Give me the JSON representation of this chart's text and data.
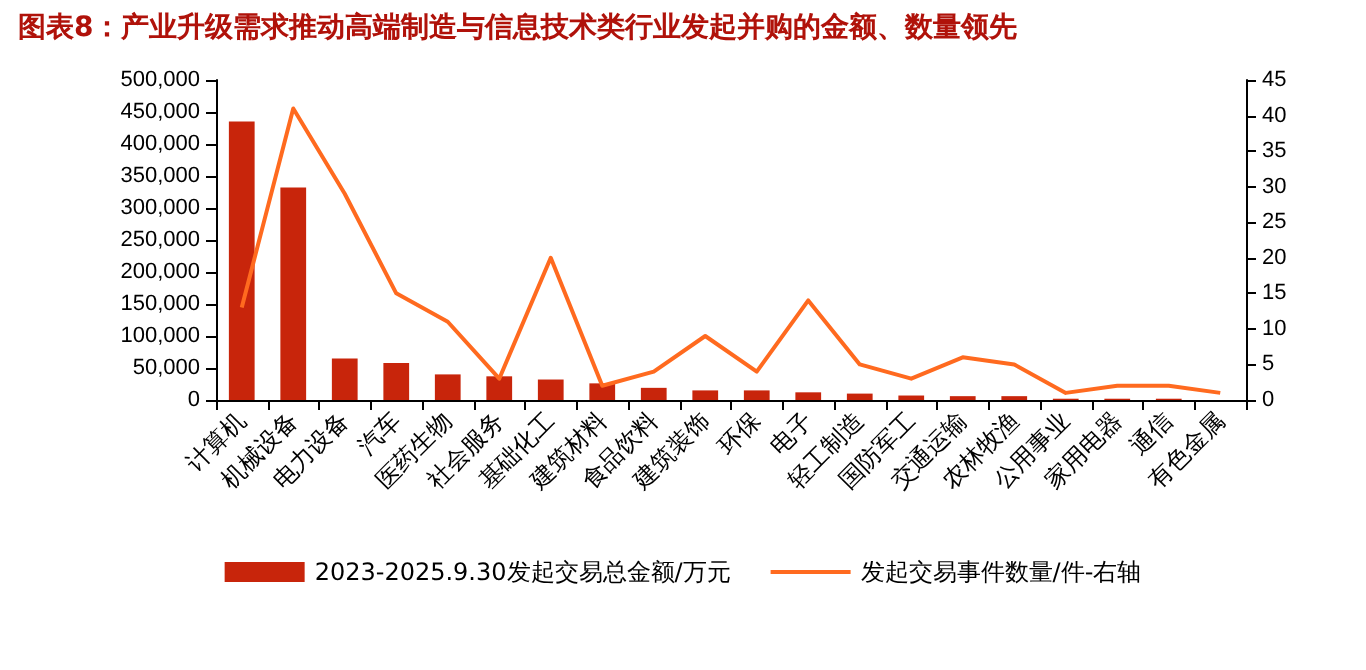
{
  "chart_data": {
    "type": "bar",
    "title": "图表8：产业升级需求推动高端制造与信息技术类行业发起并购的金额、数量领先",
    "categories": [
      "计算机",
      "机械设备",
      "电力设备",
      "汽车",
      "医药生物",
      "社会服务",
      "基础化工",
      "建筑材料",
      "食品饮料",
      "建筑装饰",
      "环保",
      "电子",
      "轻工制造",
      "国防军工",
      "交通运输",
      "农林牧渔",
      "公用事业",
      "家用电器",
      "通信",
      "有色金属"
    ],
    "series": [
      {
        "name": "2023-2025.9.30发起交易总金额/万元",
        "color": "#c8250b",
        "values": [
          435000,
          332000,
          65000,
          58000,
          40000,
          37000,
          32000,
          26000,
          19000,
          15000,
          15000,
          12000,
          10000,
          7000,
          6000,
          6000,
          2000,
          2000,
          2000,
          0
        ]
      },
      {
        "name": "发起交易事件数量/件-右轴",
        "type": "line",
        "axis": "y2",
        "color": "#ff6a1f",
        "values": [
          13,
          41,
          29,
          15,
          11,
          3,
          20,
          2,
          4,
          9,
          4,
          14,
          5,
          3,
          6,
          5,
          1,
          2,
          2,
          1
        ]
      }
    ],
    "ylim": [
      0,
      500000
    ],
    "yticks": [
      0,
      {
        "value": 50000,
        "label": "50,000"
      },
      {
        "value": 100000,
        "label": "100,000"
      },
      {
        "value": 150000,
        "label": "150,000"
      },
      {
        "value": 200000,
        "label": "200,000"
      },
      {
        "value": 250000,
        "label": "250,000"
      },
      {
        "value": 300000,
        "label": "300,000"
      },
      {
        "value": 350000,
        "label": "350,000"
      },
      {
        "value": 400000,
        "label": "400,000"
      },
      {
        "value": 450000,
        "label": "450,000"
      },
      {
        "value": 500000,
        "label": "500,000"
      }
    ],
    "y2lim": [
      0,
      45
    ],
    "y2ticks": [
      0,
      5,
      10,
      15,
      20,
      25,
      30,
      35,
      40,
      45
    ],
    "grid": false,
    "legend": "bottom",
    "marker": "none"
  }
}
